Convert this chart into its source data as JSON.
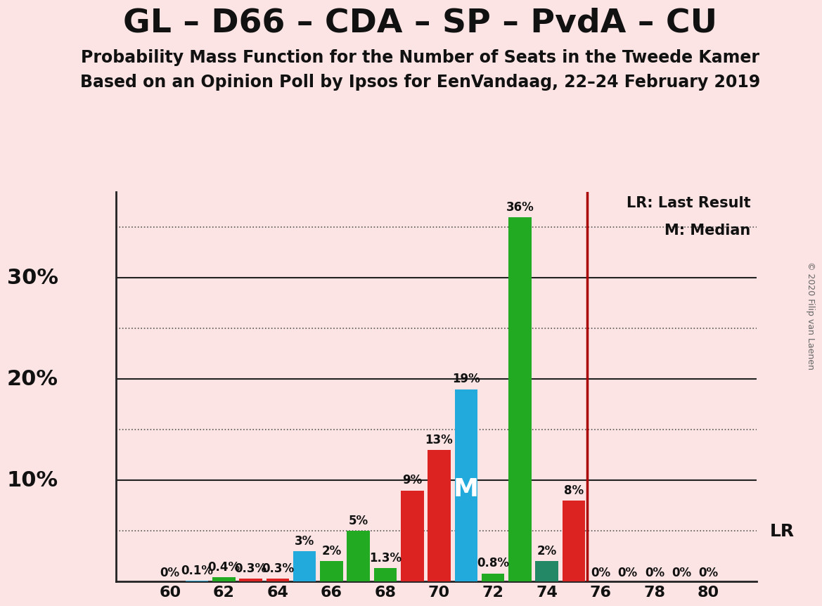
{
  "title": "GL – D66 – CDA – SP – PvdA – CU",
  "subtitle1": "Probability Mass Function for the Number of Seats in the Tweede Kamer",
  "subtitle2": "Based on an Opinion Poll by Ipsos for EenVandaag, 22–24 February 2019",
  "copyright": "© 2020 Filip van Laenen",
  "background_color": "#fce4e4",
  "seats": [
    60,
    61,
    62,
    63,
    64,
    65,
    66,
    67,
    68,
    69,
    70,
    71,
    72,
    73,
    74,
    75,
    76,
    77,
    78,
    79,
    80
  ],
  "values": [
    0.0,
    0.1,
    0.4,
    0.3,
    0.3,
    3.0,
    2.0,
    5.0,
    1.3,
    9.0,
    13.0,
    19.0,
    0.8,
    36.0,
    2.0,
    8.0,
    0.0,
    0.0,
    0.0,
    0.0,
    0.0
  ],
  "bar_colors": [
    "#111111",
    "#22aadd",
    "#22aa22",
    "#dd2222",
    "#dd2222",
    "#22aadd",
    "#22aa22",
    "#22aa22",
    "#22aa22",
    "#dd2222",
    "#dd2222",
    "#22aadd",
    "#22aa22",
    "#22aa22",
    "#228866",
    "#dd2222",
    "#111111",
    "#111111",
    "#111111",
    "#111111",
    "#111111"
  ],
  "labels": [
    "0%",
    "0.1%",
    "0.4%",
    "0.3%",
    "0.3%",
    "3%",
    "2%",
    "5%",
    "1.3%",
    "9%",
    "13%",
    "19%",
    "0.8%",
    "36%",
    "2%",
    "8%",
    "0%",
    "0%",
    "0%",
    "0%",
    "0%"
  ],
  "colors": {
    "green": "#22aa22",
    "red": "#dd2222",
    "blue": "#22aadd",
    "darkgreen": "#228866"
  },
  "lr_line_x": 75.5,
  "lr_value": 5.0,
  "median_seat": 71,
  "ylim": [
    0,
    38.5
  ],
  "solid_yticks": [
    10,
    20,
    30
  ],
  "dotted_yticks": [
    5,
    15,
    25,
    35
  ],
  "ytick_labels_pos": [
    10,
    20,
    30
  ],
  "ytick_labels": [
    "10%",
    "20%",
    "30%"
  ],
  "xlabel_ticks": [
    60,
    62,
    64,
    66,
    68,
    70,
    72,
    74,
    76,
    78,
    80
  ],
  "bar_width": 0.85,
  "title_fontsize": 34,
  "subtitle_fontsize": 17,
  "tick_fontsize": 16,
  "label_fontsize": 12,
  "ytick_fontsize": 22
}
